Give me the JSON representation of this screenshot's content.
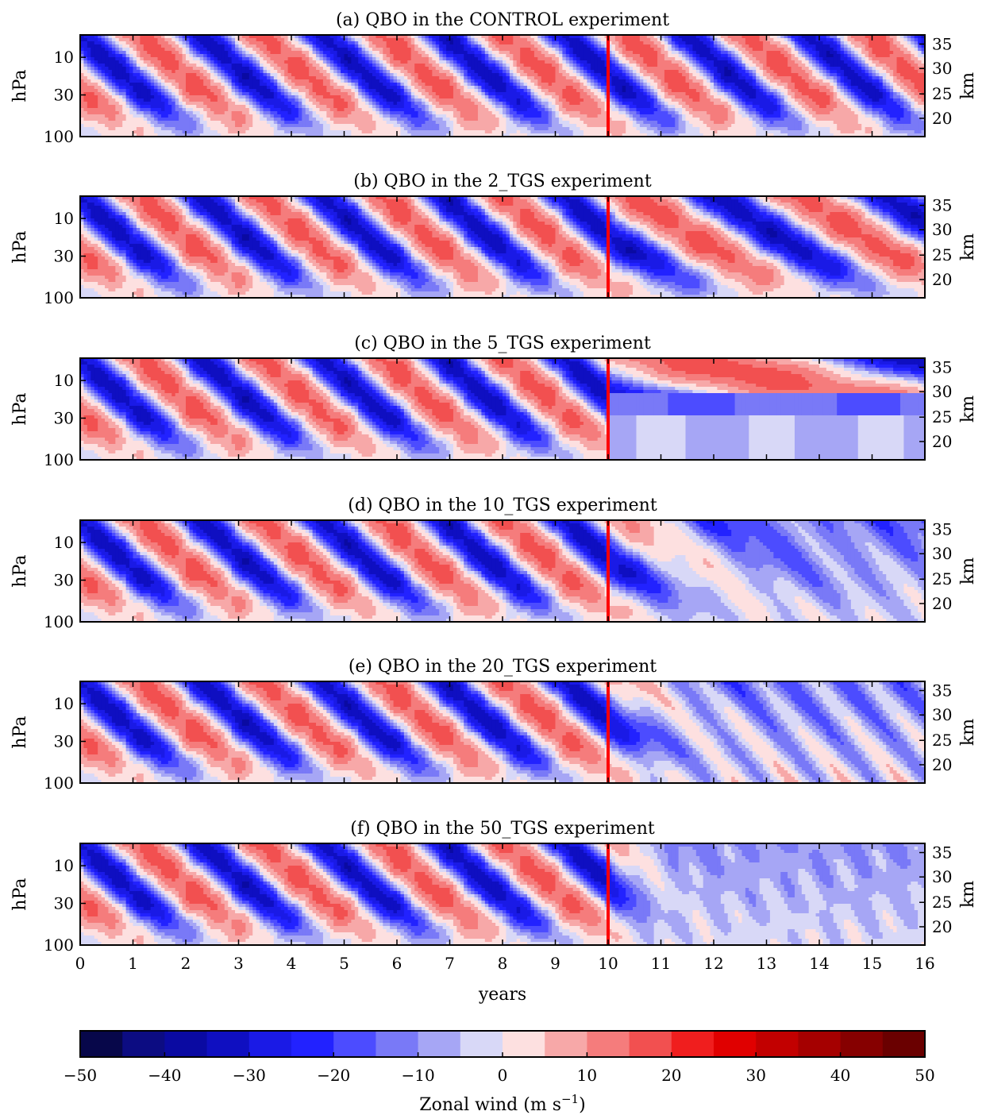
{
  "chart_data": [
    {
      "type": "heatmap",
      "title": "(a) QBO in the CONTROL experiment",
      "ylabel": "hPa",
      "y2label": "km",
      "yticks": [
        "10",
        "30",
        "100"
      ],
      "y2ticks": [
        "35",
        "30",
        "25",
        "20"
      ],
      "xlim": [
        0,
        16
      ],
      "marker_year": 10,
      "regime": "control"
    },
    {
      "type": "heatmap",
      "title": "(b) QBO in the 2_TGS experiment",
      "ylabel": "hPa",
      "y2label": "km",
      "yticks": [
        "10",
        "30",
        "100"
      ],
      "y2ticks": [
        "35",
        "30",
        "25",
        "20"
      ],
      "xlim": [
        0,
        16
      ],
      "marker_year": 10,
      "regime": "slowed"
    },
    {
      "type": "heatmap",
      "title": "(c) QBO in the 5_TGS experiment",
      "ylabel": "hPa",
      "y2label": "km",
      "yticks": [
        "10",
        "30",
        "100"
      ],
      "y2ticks": [
        "35",
        "30",
        "25",
        "20"
      ],
      "xlim": [
        0,
        16
      ],
      "marker_year": 10,
      "regime": "stalled"
    },
    {
      "type": "heatmap",
      "title": "(d) QBO in the 10_TGS experiment",
      "ylabel": "hPa",
      "y2label": "km",
      "yticks": [
        "10",
        "30",
        "100"
      ],
      "y2ticks": [
        "35",
        "30",
        "25",
        "20"
      ],
      "xlim": [
        0,
        16
      ],
      "marker_year": 10,
      "regime": "weak"
    },
    {
      "type": "heatmap",
      "title": "(e) QBO in the 20_TGS experiment",
      "ylabel": "hPa",
      "y2label": "km",
      "yticks": [
        "10",
        "30",
        "100"
      ],
      "y2ticks": [
        "35",
        "30",
        "25",
        "20"
      ],
      "xlim": [
        0,
        16
      ],
      "marker_year": 10,
      "regime": "weaker"
    },
    {
      "type": "heatmap",
      "title": "(f) QBO in the 50_TGS experiment",
      "ylabel": "hPa",
      "y2label": "km",
      "yticks": [
        "10",
        "30",
        "100"
      ],
      "y2ticks": [
        "35",
        "30",
        "25",
        "20"
      ],
      "xlim": [
        0,
        16
      ],
      "marker_year": 10,
      "regime": "collapsed"
    }
  ],
  "xaxis": {
    "label": "years",
    "ticks": [
      "0",
      "1",
      "2",
      "3",
      "4",
      "5",
      "6",
      "7",
      "8",
      "9",
      "10",
      "11",
      "12",
      "13",
      "14",
      "15",
      "16"
    ]
  },
  "colorbar": {
    "label": "Zonal wind (m s",
    "label_sup": "−1",
    "label_end": ")",
    "ticks": [
      "−50",
      "−40",
      "−30",
      "−20",
      "−10",
      "0",
      "10",
      "20",
      "30",
      "40",
      "50"
    ],
    "range": [
      -50,
      50
    ],
    "step": 5,
    "colors": [
      "#07074a",
      "#0c0c82",
      "#0a0aa2",
      "#0f0fc1",
      "#1a1ae6",
      "#2222ff",
      "#4c4cff",
      "#7979f7",
      "#a6a6f5",
      "#d8d8f7",
      "#fde0e0",
      "#f7a8a8",
      "#f57c7c",
      "#f25050",
      "#f01e1e",
      "#e00000",
      "#c20000",
      "#a50000",
      "#860000",
      "#6a0000"
    ]
  },
  "marker_color": "#ff0000"
}
